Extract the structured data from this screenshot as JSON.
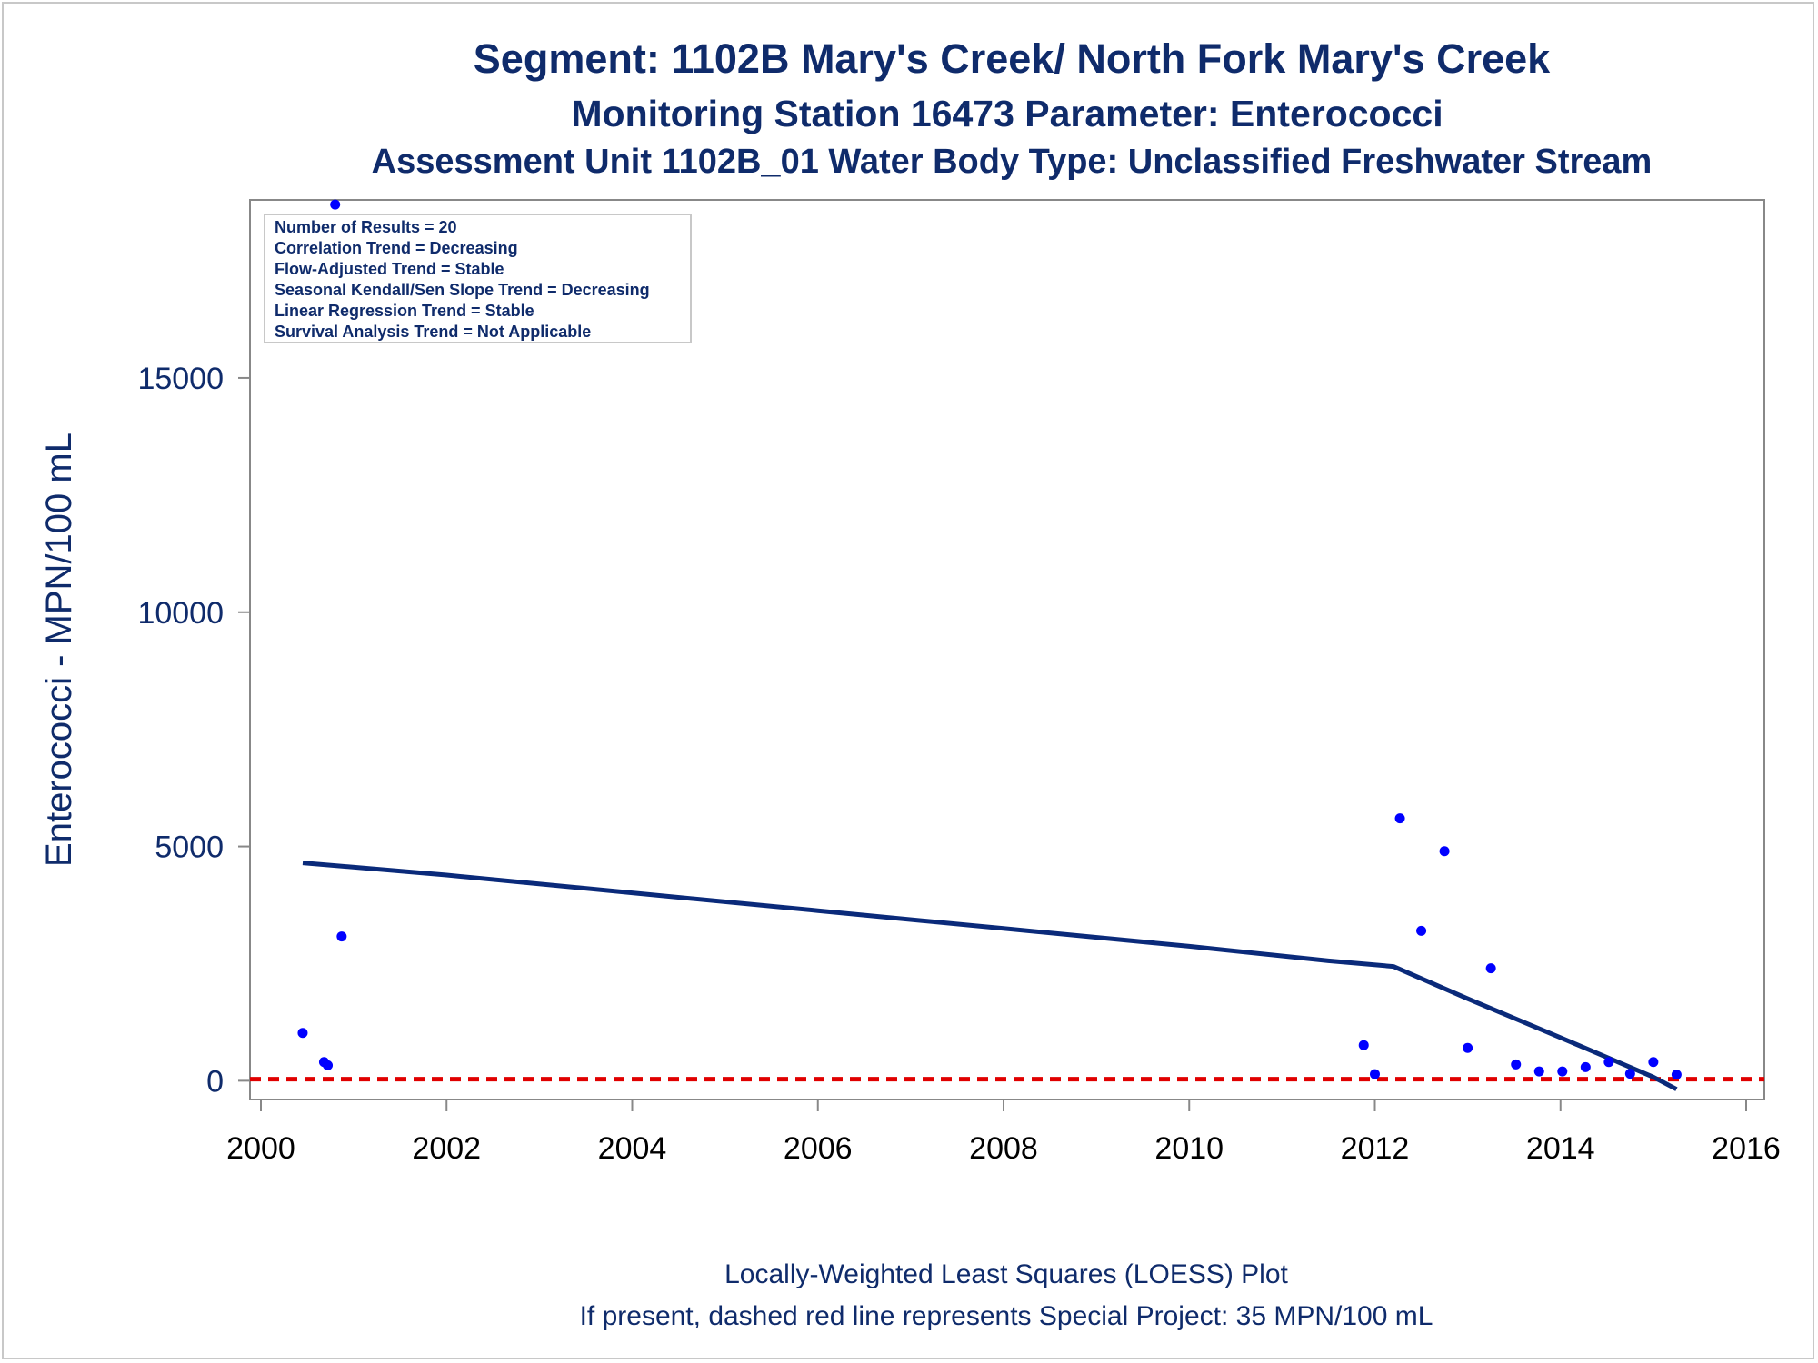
{
  "titles": {
    "line1": "Segment: 1102B  Mary's Creek/ North Fork Mary's Creek",
    "line2": "Monitoring Station 16473 Parameter: Enterococci",
    "line3": "Assessment Unit 1102B_01   Water Body Type: Unclassified Freshwater Stream"
  },
  "stats_box": [
    "Number of Results = 20",
    "Correlation Trend = Decreasing",
    "Flow-Adjusted Trend = Stable",
    "Seasonal Kendall/Sen Slope Trend = Decreasing",
    "Linear Regression Trend = Stable",
    "Survival Analysis Trend = Not Applicable"
  ],
  "footnotes": {
    "line1": "Locally-Weighted Least Squares (LOESS) Plot",
    "line2": "If present, dashed red line represents Special Project: 35 MPN/100 mL"
  },
  "colors": {
    "text": "#0f2b6b",
    "points": "#0000ff",
    "loess": "#0a2a7a",
    "reference": "#e00000",
    "axis": "#888888"
  },
  "chart_data": {
    "type": "scatter",
    "ylabel": "Enterococci - MPN/100 mL",
    "xlim": [
      2000,
      2016
    ],
    "ylim": [
      -400,
      18800
    ],
    "x_ticks": [
      2000,
      2002,
      2004,
      2006,
      2008,
      2010,
      2012,
      2014,
      2016
    ],
    "y_ticks": [
      0,
      5000,
      10000,
      15000
    ],
    "points": [
      {
        "x": 2000.45,
        "y": 1020
      },
      {
        "x": 2000.68,
        "y": 400
      },
      {
        "x": 2000.72,
        "y": 330
      },
      {
        "x": 2000.8,
        "y": 18700
      },
      {
        "x": 2000.87,
        "y": 3080
      },
      {
        "x": 2011.88,
        "y": 760
      },
      {
        "x": 2012.0,
        "y": 140
      },
      {
        "x": 2012.27,
        "y": 5600
      },
      {
        "x": 2012.5,
        "y": 3200
      },
      {
        "x": 2012.75,
        "y": 4900
      },
      {
        "x": 2013.0,
        "y": 700
      },
      {
        "x": 2013.25,
        "y": 2400
      },
      {
        "x": 2013.52,
        "y": 350
      },
      {
        "x": 2013.77,
        "y": 200
      },
      {
        "x": 2014.02,
        "y": 200
      },
      {
        "x": 2014.27,
        "y": 290
      },
      {
        "x": 2014.52,
        "y": 400
      },
      {
        "x": 2014.75,
        "y": 150
      },
      {
        "x": 2015.0,
        "y": 400
      },
      {
        "x": 2015.25,
        "y": 130
      }
    ],
    "loess_line": {
      "x": [
        2000.45,
        2002,
        2004,
        2006,
        2008,
        2010,
        2011.5,
        2012.2,
        2013,
        2014,
        2015,
        2015.25
      ],
      "y": [
        4650,
        4390,
        4010,
        3630,
        3250,
        2870,
        2560,
        2440,
        1750,
        920,
        80,
        -180
      ]
    },
    "reference_line": {
      "y": 35
    }
  }
}
